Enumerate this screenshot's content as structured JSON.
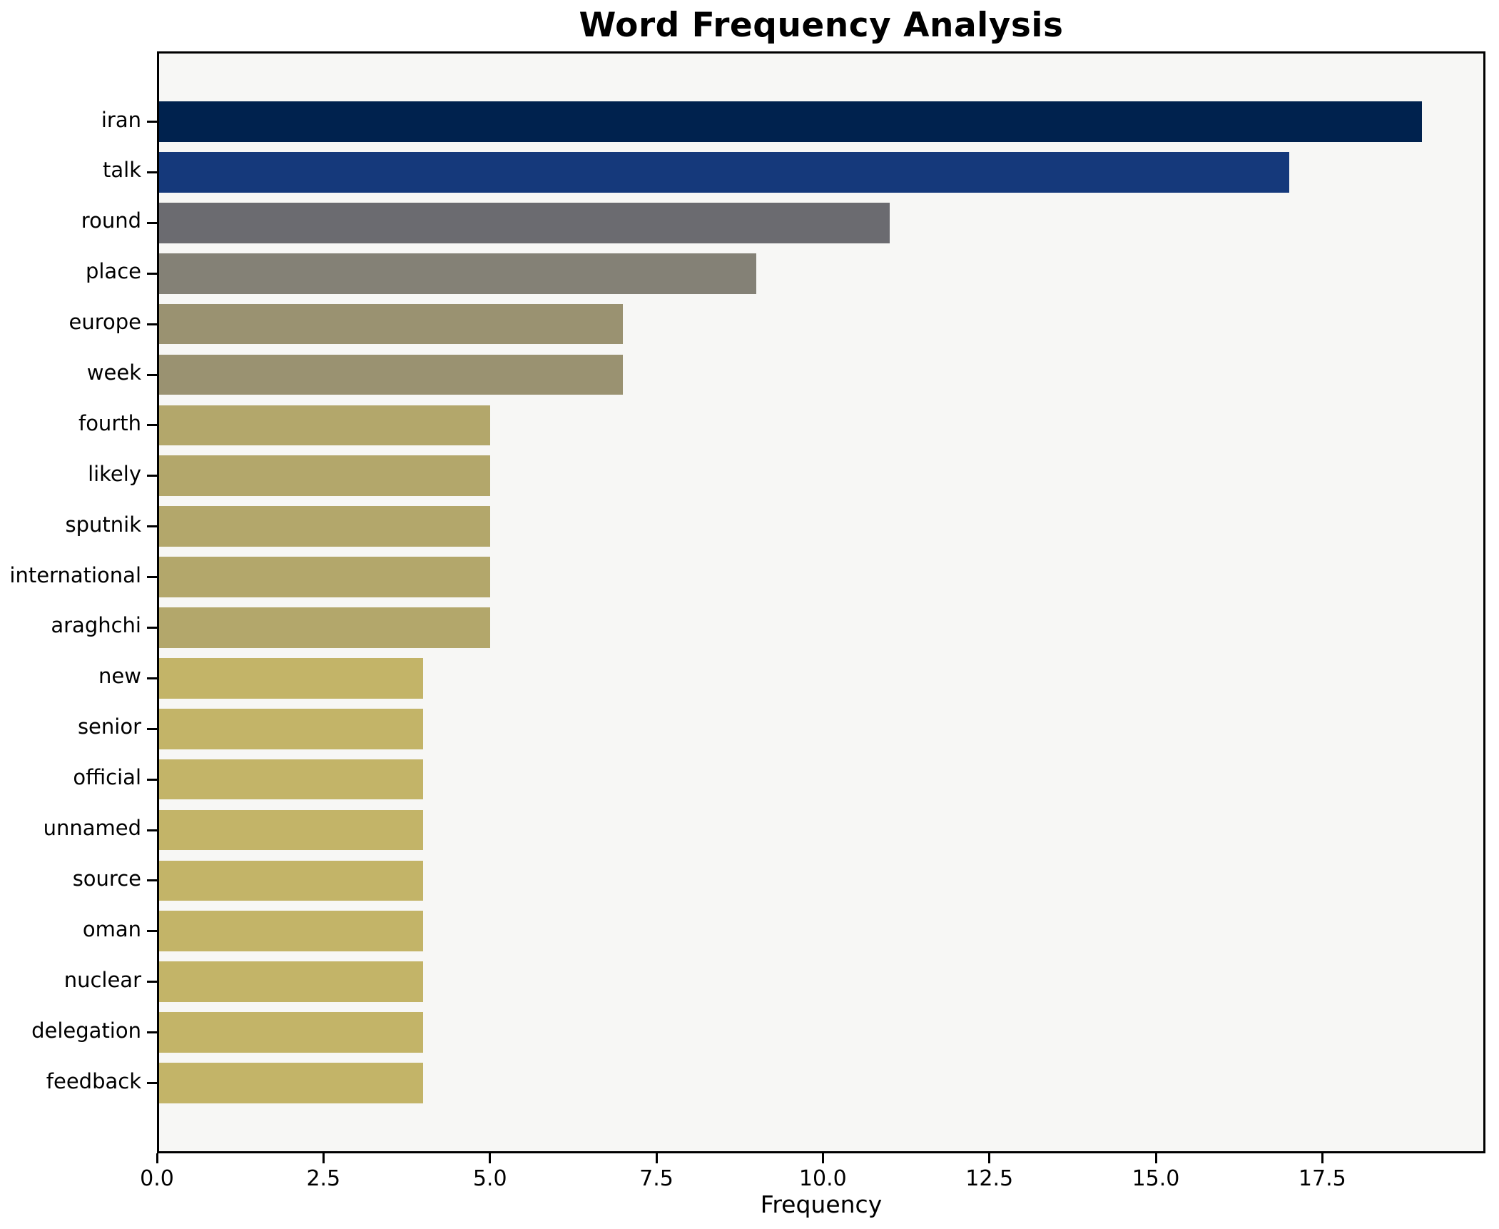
{
  "chart_data": {
    "type": "bar",
    "orientation": "horizontal",
    "title": "Word Frequency Analysis",
    "xlabel": "Frequency",
    "ylabel": "",
    "categories": [
      "iran",
      "talk",
      "round",
      "place",
      "europe",
      "week",
      "fourth",
      "likely",
      "sputnik",
      "international",
      "araghchi",
      "new",
      "senior",
      "official",
      "unnamed",
      "source",
      "oman",
      "nuclear",
      "delegation",
      "feedback"
    ],
    "values": [
      19,
      17,
      11,
      9,
      7,
      7,
      5,
      5,
      5,
      5,
      5,
      4,
      4,
      4,
      4,
      4,
      4,
      4,
      4,
      4
    ],
    "bar_colors": [
      "#00224e",
      "#15397b",
      "#6b6b70",
      "#848176",
      "#9a9271",
      "#9a9271",
      "#b3a76b",
      "#b3a76b",
      "#b3a76b",
      "#b3a76b",
      "#b3a76b",
      "#c3b468",
      "#c3b468",
      "#c3b468",
      "#c3b468",
      "#c3b468",
      "#c3b468",
      "#c3b468",
      "#c3b468",
      "#c3b468"
    ],
    "xlim": [
      0,
      19.95
    ],
    "xticks": [
      0.0,
      2.5,
      5.0,
      7.5,
      10.0,
      12.5,
      15.0,
      17.5
    ],
    "xtick_labels": [
      "0.0",
      "2.5",
      "5.0",
      "7.5",
      "10.0",
      "12.5",
      "15.0",
      "17.5"
    ],
    "grid": false,
    "legend": "none",
    "colors": {
      "plot_background": "#f7f7f5",
      "figure_background": "#ffffff",
      "spine": "#000000",
      "text": "#000000"
    }
  }
}
